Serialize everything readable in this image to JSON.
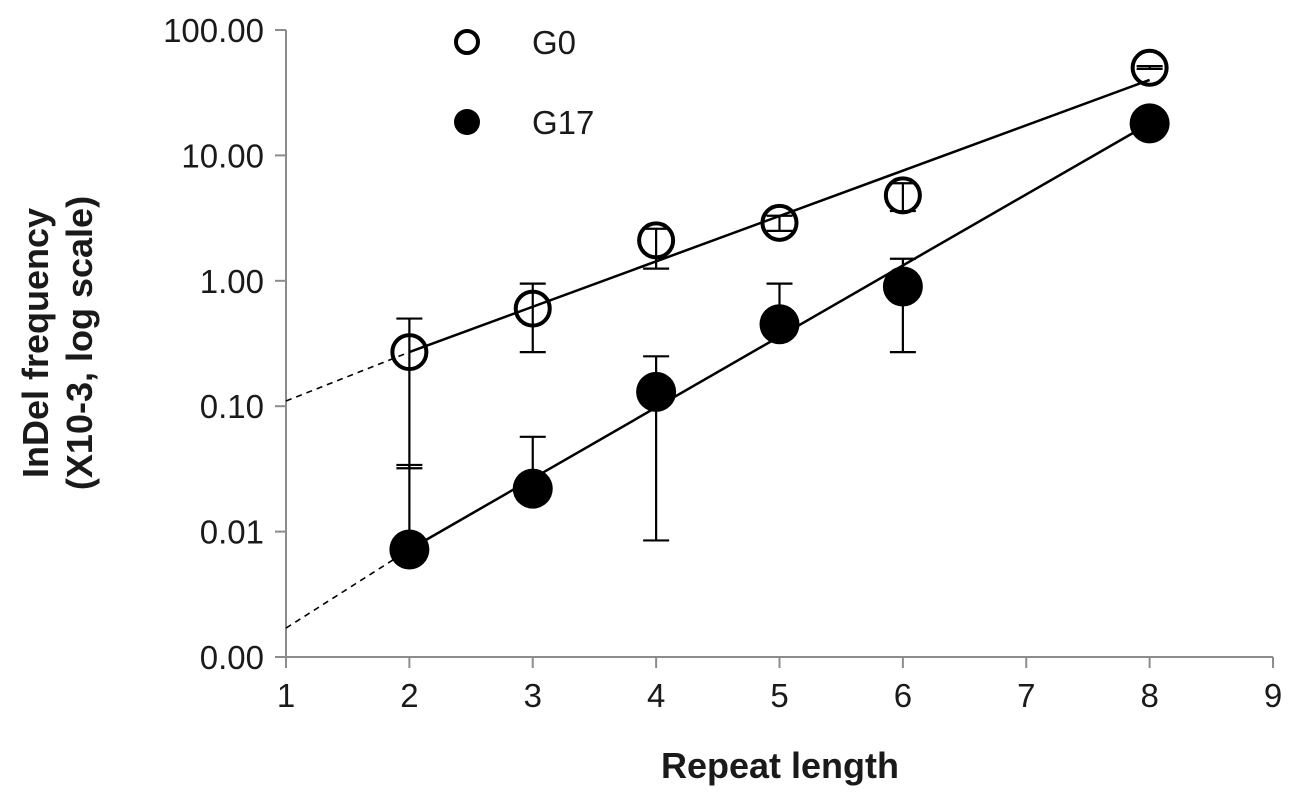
{
  "chart_data": {
    "type": "scatter",
    "title": "",
    "xlabel": "Repeat length",
    "ylabel": [
      "InDel frequency",
      "(X10-3, log scale)"
    ],
    "x_scale": "linear",
    "y_scale": "log",
    "xlim": [
      1,
      9
    ],
    "ylim": [
      0.001,
      100
    ],
    "x_ticks": [
      1,
      2,
      3,
      4,
      5,
      6,
      7,
      8,
      9
    ],
    "x_tick_labels": [
      "1",
      "2",
      "3",
      "4",
      "5",
      "6",
      "7",
      "8",
      "9"
    ],
    "y_ticks": [
      0.001,
      0.01,
      0.1,
      1,
      10,
      100
    ],
    "y_tick_labels": [
      "0.00",
      "0.01",
      "0.10",
      "1.00",
      "10.00",
      "100.00"
    ],
    "grid": false,
    "legend_position": "top-left",
    "series": [
      {
        "name": "G0",
        "marker": "open-circle",
        "color": "#000000",
        "x": [
          2,
          3,
          4,
          5,
          6,
          8
        ],
        "y": [
          0.27,
          0.6,
          2.1,
          2.9,
          4.8,
          50
        ],
        "err_upper": [
          0.5,
          0.95,
          2.6,
          3.3,
          6.0,
          51.5
        ],
        "err_lower": [
          0.032,
          0.27,
          1.25,
          2.5,
          3.6,
          49
        ],
        "trend_x": [
          2,
          8
        ],
        "trend_y": [
          0.27,
          40
        ],
        "extrapolation_x": [
          1,
          2
        ],
        "extrapolation_y": [
          0.11,
          0.27
        ]
      },
      {
        "name": "G17",
        "marker": "filled-circle",
        "color": "#000000",
        "x": [
          2,
          3,
          4,
          5,
          6,
          8
        ],
        "y": [
          0.0072,
          0.022,
          0.13,
          0.45,
          0.9,
          18
        ],
        "err_upper": [
          0.034,
          0.057,
          0.25,
          0.95,
          1.5,
          18
        ],
        "err_lower": [
          0.0072,
          0.022,
          0.0085,
          0.45,
          0.27,
          18
        ],
        "trend_x": [
          2,
          8
        ],
        "trend_y": [
          0.0072,
          18
        ],
        "extrapolation_x": [
          1,
          2
        ],
        "extrapolation_y": [
          0.0017,
          0.0072
        ]
      }
    ]
  }
}
